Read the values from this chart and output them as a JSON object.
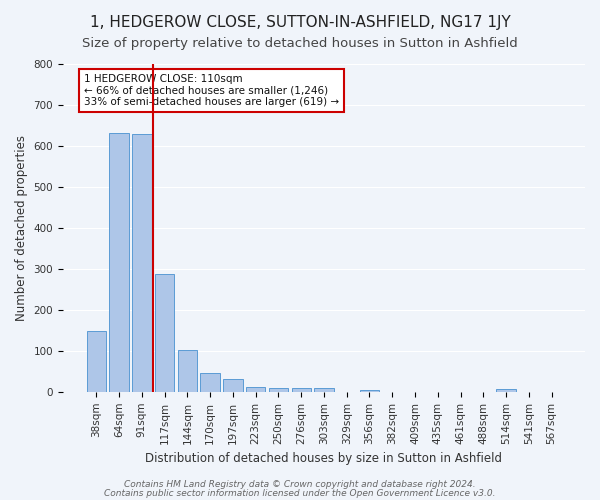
{
  "title": "1, HEDGEROW CLOSE, SUTTON-IN-ASHFIELD, NG17 1JY",
  "subtitle": "Size of property relative to detached houses in Sutton in Ashfield",
  "xlabel": "Distribution of detached houses by size in Sutton in Ashfield",
  "ylabel": "Number of detached properties",
  "footnote1": "Contains HM Land Registry data © Crown copyright and database right 2024.",
  "footnote2": "Contains public sector information licensed under the Open Government Licence v3.0.",
  "bar_labels": [
    "38sqm",
    "64sqm",
    "91sqm",
    "117sqm",
    "144sqm",
    "170sqm",
    "197sqm",
    "223sqm",
    "250sqm",
    "276sqm",
    "303sqm",
    "329sqm",
    "356sqm",
    "382sqm",
    "409sqm",
    "435sqm",
    "461sqm",
    "488sqm",
    "514sqm",
    "541sqm",
    "567sqm"
  ],
  "bar_values": [
    148,
    632,
    628,
    287,
    101,
    45,
    31,
    12,
    10,
    9,
    10,
    0,
    5,
    0,
    0,
    0,
    0,
    0,
    8,
    0,
    0
  ],
  "bar_color": "#aec6e8",
  "bar_edge_color": "#5b9bd5",
  "vline_x": 2.5,
  "vline_color": "#cc0000",
  "annotation_title": "1 HEDGEROW CLOSE: 110sqm",
  "annotation_line1": "← 66% of detached houses are smaller (1,246)",
  "annotation_line2": "33% of semi-detached houses are larger (619) →",
  "annotation_box_color": "#ffffff",
  "annotation_box_edge": "#cc0000",
  "ylim": [
    0,
    800
  ],
  "yticks": [
    0,
    100,
    200,
    300,
    400,
    500,
    600,
    700,
    800
  ],
  "bg_color": "#f0f4fa",
  "grid_color": "#ffffff",
  "title_fontsize": 11,
  "subtitle_fontsize": 9.5,
  "axis_label_fontsize": 8.5,
  "tick_fontsize": 7.5,
  "footnote_fontsize": 6.5
}
